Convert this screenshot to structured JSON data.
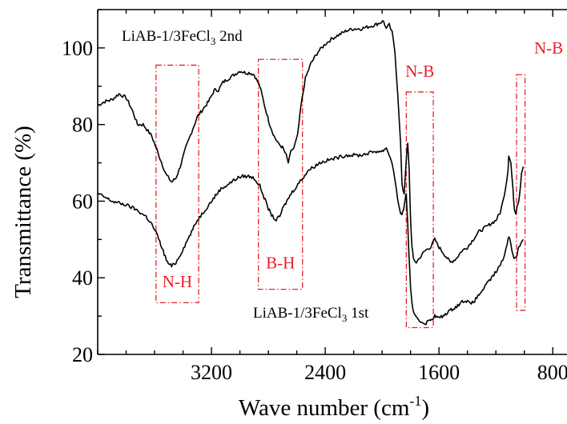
{
  "chart_data": {
    "type": "line",
    "xlabel": {
      "base": "Wave number (cm",
      "sup": "-1",
      "tail": ")"
    },
    "ylabel": "Transmittance (%)",
    "xlim": [
      4000,
      700
    ],
    "ylim": [
      20,
      110
    ],
    "x_reversed": true,
    "x_ticks": [
      3200,
      2400,
      1600,
      800
    ],
    "y_ticks": [
      20,
      40,
      60,
      80,
      100
    ],
    "series": [
      {
        "label_parts": {
          "a": "LiAB-1/3FeCl",
          "sub": "3",
          "b": " 2nd"
        },
        "color": "#000000",
        "points": [
          [
            4000,
            85
          ],
          [
            3950,
            86
          ],
          [
            3900,
            86.5
          ],
          [
            3850,
            88
          ],
          [
            3800,
            87
          ],
          [
            3760,
            84
          ],
          [
            3720,
            80
          ],
          [
            3680,
            80
          ],
          [
            3620,
            77
          ],
          [
            3560,
            71
          ],
          [
            3520,
            67
          ],
          [
            3480,
            65
          ],
          [
            3450,
            66
          ],
          [
            3420,
            69
          ],
          [
            3380,
            74
          ],
          [
            3340,
            78
          ],
          [
            3300,
            82
          ],
          [
            3260,
            84
          ],
          [
            3220,
            86
          ],
          [
            3180,
            89
          ],
          [
            3150,
            89
          ],
          [
            3120,
            91
          ],
          [
            3080,
            92
          ],
          [
            3040,
            93
          ],
          [
            3000,
            94
          ],
          [
            2960,
            93.5
          ],
          [
            2930,
            93.5
          ],
          [
            2900,
            93
          ],
          [
            2860,
            90
          ],
          [
            2820,
            84
          ],
          [
            2790,
            80
          ],
          [
            2760,
            77
          ],
          [
            2730,
            75
          ],
          [
            2700,
            74
          ],
          [
            2675,
            72
          ],
          [
            2660,
            70
          ],
          [
            2640,
            73
          ],
          [
            2620,
            74
          ],
          [
            2595,
            77
          ],
          [
            2570,
            85
          ],
          [
            2540,
            92
          ],
          [
            2500,
            96
          ],
          [
            2450,
            99
          ],
          [
            2400,
            101
          ],
          [
            2350,
            102.5
          ],
          [
            2300,
            103.5
          ],
          [
            2250,
            104.5
          ],
          [
            2200,
            105
          ],
          [
            2150,
            105
          ],
          [
            2100,
            105.5
          ],
          [
            2050,
            106
          ],
          [
            2020,
            106.5
          ],
          [
            1990,
            107
          ],
          [
            1970,
            105
          ],
          [
            1950,
            106
          ],
          [
            1930,
            104
          ],
          [
            1910,
            99
          ],
          [
            1890,
            88
          ],
          [
            1870,
            75
          ],
          [
            1860,
            64
          ],
          [
            1845,
            62
          ],
          [
            1830,
            71
          ],
          [
            1820,
            75
          ],
          [
            1810,
            68
          ],
          [
            1800,
            55
          ],
          [
            1790,
            48
          ],
          [
            1780,
            45
          ],
          [
            1760,
            44
          ],
          [
            1740,
            45
          ],
          [
            1700,
            47
          ],
          [
            1660,
            48
          ],
          [
            1630,
            50
          ],
          [
            1600,
            48
          ],
          [
            1560,
            46
          ],
          [
            1520,
            44
          ],
          [
            1480,
            45
          ],
          [
            1440,
            47
          ],
          [
            1400,
            48
          ],
          [
            1360,
            50
          ],
          [
            1320,
            52
          ],
          [
            1280,
            53
          ],
          [
            1240,
            54
          ],
          [
            1200,
            55
          ],
          [
            1170,
            57
          ],
          [
            1150,
            60
          ],
          [
            1130,
            64
          ],
          [
            1115,
            68
          ],
          [
            1110,
            72
          ],
          [
            1095,
            70
          ],
          [
            1080,
            63
          ],
          [
            1070,
            58
          ],
          [
            1060,
            57
          ],
          [
            1050,
            59
          ],
          [
            1040,
            60
          ],
          [
            1030,
            63
          ],
          [
            1020,
            67
          ],
          [
            1008,
            69
          ]
        ]
      },
      {
        "label_parts": {
          "a": "LiAB-1/3FeCl",
          "sub": "3",
          "b": " 1st"
        },
        "color": "#000000",
        "points": [
          [
            4000,
            62
          ],
          [
            3950,
            61
          ],
          [
            3900,
            60
          ],
          [
            3850,
            59.5
          ],
          [
            3800,
            59
          ],
          [
            3740,
            58
          ],
          [
            3700,
            57
          ],
          [
            3660,
            56
          ],
          [
            3620,
            54
          ],
          [
            3580,
            51
          ],
          [
            3540,
            47
          ],
          [
            3510,
            44
          ],
          [
            3480,
            43
          ],
          [
            3450,
            44
          ],
          [
            3420,
            46
          ],
          [
            3380,
            49
          ],
          [
            3340,
            52
          ],
          [
            3300,
            55
          ],
          [
            3260,
            57
          ],
          [
            3220,
            59
          ],
          [
            3180,
            61
          ],
          [
            3140,
            63
          ],
          [
            3100,
            64
          ],
          [
            3060,
            65
          ],
          [
            3020,
            66
          ],
          [
            2980,
            66.5
          ],
          [
            2940,
            66.5
          ],
          [
            2900,
            66
          ],
          [
            2860,
            64
          ],
          [
            2830,
            61
          ],
          [
            2800,
            58
          ],
          [
            2770,
            56
          ],
          [
            2745,
            55
          ],
          [
            2720,
            56
          ],
          [
            2700,
            58
          ],
          [
            2670,
            60
          ],
          [
            2640,
            62
          ],
          [
            2600,
            64
          ],
          [
            2560,
            66
          ],
          [
            2520,
            68
          ],
          [
            2480,
            69
          ],
          [
            2440,
            70
          ],
          [
            2400,
            70.5
          ],
          [
            2350,
            71
          ],
          [
            2300,
            71.5
          ],
          [
            2250,
            72
          ],
          [
            2200,
            72
          ],
          [
            2150,
            72
          ],
          [
            2100,
            72.5
          ],
          [
            2050,
            73
          ],
          [
            2000,
            73
          ],
          [
            1970,
            74
          ],
          [
            1950,
            72
          ],
          [
            1930,
            70
          ],
          [
            1910,
            66
          ],
          [
            1890,
            60
          ],
          [
            1870,
            57
          ],
          [
            1860,
            56
          ],
          [
            1850,
            58
          ],
          [
            1840,
            60
          ],
          [
            1830,
            62
          ],
          [
            1820,
            54
          ],
          [
            1810,
            45
          ],
          [
            1800,
            37
          ],
          [
            1790,
            33
          ],
          [
            1780,
            31
          ],
          [
            1760,
            30
          ],
          [
            1740,
            29
          ],
          [
            1720,
            28.5
          ],
          [
            1700,
            28
          ],
          [
            1660,
            29
          ],
          [
            1630,
            30
          ],
          [
            1600,
            29.5
          ],
          [
            1570,
            30
          ],
          [
            1540,
            31
          ],
          [
            1500,
            32
          ],
          [
            1460,
            33
          ],
          [
            1430,
            34
          ],
          [
            1400,
            34
          ],
          [
            1380,
            33
          ],
          [
            1350,
            34
          ],
          [
            1310,
            36
          ],
          [
            1270,
            38
          ],
          [
            1230,
            40
          ],
          [
            1190,
            42
          ],
          [
            1160,
            44
          ],
          [
            1140,
            46
          ],
          [
            1120,
            49
          ],
          [
            1108,
            51
          ],
          [
            1095,
            49
          ],
          [
            1080,
            46
          ],
          [
            1065,
            45
          ],
          [
            1050,
            46
          ],
          [
            1040,
            48
          ],
          [
            1025,
            49
          ],
          [
            1008,
            50
          ]
        ]
      }
    ],
    "annotations": [
      {
        "label": "N-H",
        "color": "#e8202a",
        "x_range": [
          3590,
          3290
        ],
        "y_range": [
          33.5,
          95.5
        ]
      },
      {
        "label": "B-H",
        "color": "#e8202a",
        "x_range": [
          2870,
          2560
        ],
        "y_range": [
          37,
          97
        ]
      },
      {
        "label": "N-B",
        "color": "#e8202a",
        "x_range": [
          1830,
          1640
        ],
        "y_range": [
          27,
          88.5
        ]
      },
      {
        "label": "N-B",
        "color": "#e8202a",
        "x_range": [
          1055,
          995
        ],
        "y_range": [
          31.5,
          93
        ]
      }
    ]
  }
}
